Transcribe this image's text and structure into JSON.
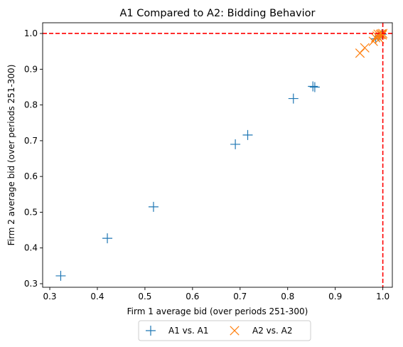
{
  "chart_data": {
    "type": "scatter",
    "title": "A1 Compared to A2: Bidding Behavior",
    "xlabel": "Firm 1 average bid (over periods 251-300)",
    "ylabel": "Firm 2 average bid (over periods 251-300)",
    "xlim": [
      0.285,
      1.02
    ],
    "ylim": [
      0.29,
      1.03
    ],
    "xticks": [
      "0.3",
      "0.4",
      "0.5",
      "0.6",
      "0.7",
      "0.8",
      "0.9",
      "1.0"
    ],
    "yticks": [
      "0.3",
      "0.4",
      "0.5",
      "0.6",
      "0.7",
      "0.8",
      "0.9",
      "1.0"
    ],
    "grid": false,
    "legend_position": "bottom-center",
    "reference_lines": [
      {
        "orientation": "horizontal",
        "value": 1.0,
        "color": "#ff0000",
        "style": "dashed"
      },
      {
        "orientation": "vertical",
        "value": 1.0,
        "color": "#ff0000",
        "style": "dashed"
      }
    ],
    "series": [
      {
        "name": "A1 vs. A1",
        "marker": "plus",
        "color": "#1f77b4",
        "points": [
          [
            0.323,
            0.322
          ],
          [
            0.421,
            0.427
          ],
          [
            0.518,
            0.515
          ],
          [
            0.69,
            0.69
          ],
          [
            0.716,
            0.716
          ],
          [
            0.812,
            0.818
          ],
          [
            0.853,
            0.852
          ],
          [
            0.857,
            0.85
          ],
          [
            0.985,
            0.985
          ],
          [
            0.992,
            0.992
          ],
          [
            0.998,
            0.998
          ]
        ]
      },
      {
        "name": "A2 vs. A2",
        "marker": "x",
        "color": "#ff7f0e",
        "points": [
          [
            0.952,
            0.945
          ],
          [
            0.962,
            0.96
          ],
          [
            0.98,
            0.978
          ],
          [
            0.985,
            0.988
          ],
          [
            0.988,
            0.993
          ],
          [
            0.99,
            0.998
          ],
          [
            0.993,
            0.985
          ],
          [
            0.995,
            0.997
          ],
          [
            0.997,
            0.999
          ],
          [
            0.999,
            0.996
          ],
          [
            1.0,
            1.0
          ]
        ]
      }
    ]
  }
}
